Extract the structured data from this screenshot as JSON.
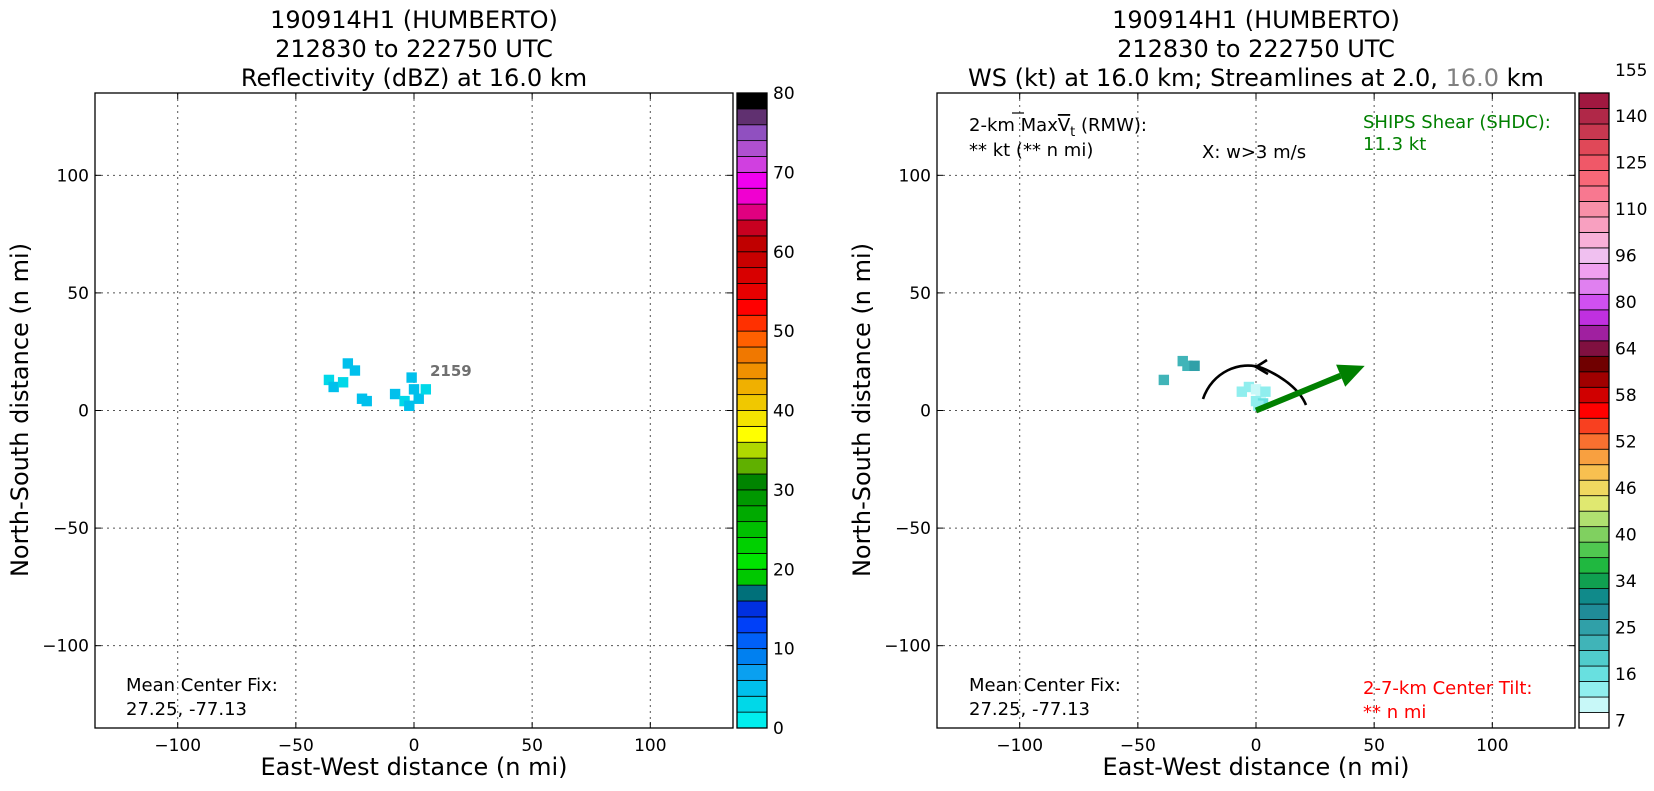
{
  "chart_data": [
    {
      "type": "heatmap",
      "title_lines": [
        "190914H1 (HUMBERTO)",
        "212830 to 222750 UTC",
        "Reflectivity (dBZ) at 16.0 km"
      ],
      "xlabel": "East-West distance (n mi)",
      "ylabel": "North-South distance (n mi)",
      "xlim": [
        -135,
        135
      ],
      "ylim": [
        -135,
        135
      ],
      "xticks": [
        -100,
        -50,
        0,
        50,
        100
      ],
      "yticks": [
        -100,
        -50,
        0,
        50,
        100
      ],
      "grid": true,
      "annotations": {
        "center_fix_label": "Mean Center Fix:",
        "center_fix_value": "27.25, -77.13",
        "point_label": "2159"
      },
      "echo_cells": [
        {
          "x": -28,
          "y": 20,
          "value": 5
        },
        {
          "x": -25,
          "y": 17,
          "value": 5
        },
        {
          "x": -36,
          "y": 13,
          "value": 4
        },
        {
          "x": -34,
          "y": 10,
          "value": 5
        },
        {
          "x": -30,
          "y": 12,
          "value": 4
        },
        {
          "x": -22,
          "y": 5,
          "value": 6
        },
        {
          "x": -20,
          "y": 4,
          "value": 5
        },
        {
          "x": -8,
          "y": 7,
          "value": 5
        },
        {
          "x": -4,
          "y": 4,
          "value": 4
        },
        {
          "x": -1,
          "y": 14,
          "value": 5
        },
        {
          "x": 0,
          "y": 9,
          "value": 6
        },
        {
          "x": 2,
          "y": 5,
          "value": 5
        },
        {
          "x": 5,
          "y": 9,
          "value": 4
        },
        {
          "x": -2,
          "y": 2,
          "value": 5
        }
      ],
      "colorbar": {
        "min": 0,
        "max": 80,
        "step": 2.5,
        "ticks": [
          "0",
          "10",
          "20",
          "30",
          "40",
          "50",
          "60",
          "70",
          "80"
        ],
        "colors": [
          "#00eeee",
          "#00d8e8",
          "#00c0ec",
          "#0aa0f0",
          "#0080f0",
          "#0060f8",
          "#0040f8",
          "#0030e0",
          "#00707a",
          "#00c800",
          "#00e400",
          "#00d000",
          "#00c000",
          "#00aa00",
          "#009800",
          "#008400",
          "#60b000",
          "#b0d800",
          "#ffff00",
          "#f4e400",
          "#f0c800",
          "#f0b000",
          "#f09000",
          "#f07800",
          "#ff6000",
          "#ff3000",
          "#ff0000",
          "#e80000",
          "#d80000",
          "#c80000",
          "#c00000",
          "#c80020",
          "#e00080",
          "#f000d0",
          "#f000f0",
          "#d040e0",
          "#b050d0",
          "#9050c0",
          "#603070",
          "#000000"
        ]
      }
    },
    {
      "type": "heatmap",
      "title_lines": [
        "190914H1 (HUMBERTO)",
        "212830 to 222750 UTC"
      ],
      "title_line3": {
        "part1": "WS (kt) at 16.0 km; Streamlines at 2.0,",
        "part2": "16.0",
        "part3": "km",
        "part2_color": "#808080"
      },
      "xlabel": "East-West distance (n mi)",
      "ylabel": "North-South distance (n mi)",
      "xlim": [
        -135,
        135
      ],
      "ylim": [
        -135,
        135
      ],
      "xticks": [
        -100,
        -50,
        0,
        50,
        100
      ],
      "yticks": [
        -100,
        -50,
        0,
        50,
        100
      ],
      "grid": true,
      "annotations": {
        "maxvt_prefix": "2-km Max",
        "maxvt_symbol": "V",
        "maxvt_sub": "t",
        "maxvt_suffix": " (RMW):",
        "maxvt_value": "** kt (** n mi)",
        "w_marker": "X: w>3 m/s",
        "ships_label": "SHIPS Shear (SHDC):",
        "ships_value": "11.3 kt",
        "ships_color": "#008000",
        "tilt_label": "2-7-km Center Tilt:",
        "tilt_value": "** n mi",
        "tilt_color": "#ff0000",
        "center_fix_label": "Mean Center Fix:",
        "center_fix_value": "27.25, -77.13"
      },
      "shear_vector": {
        "x0": 0,
        "y0": 0,
        "x1": 46,
        "y1": 19,
        "color": "#008000"
      },
      "ws_cells": [
        {
          "x": -31,
          "y": 21,
          "value": 24
        },
        {
          "x": -29,
          "y": 19,
          "value": 24
        },
        {
          "x": -26,
          "y": 19,
          "value": 26
        },
        {
          "x": -39,
          "y": 13,
          "value": 24
        },
        {
          "x": -6,
          "y": 8,
          "value": 14
        },
        {
          "x": -3,
          "y": 10,
          "value": 14
        },
        {
          "x": 0,
          "y": 9,
          "value": 12
        },
        {
          "x": 2,
          "y": 6,
          "value": 12
        },
        {
          "x": 4,
          "y": 8,
          "value": 14
        },
        {
          "x": 0,
          "y": 4,
          "value": 14
        },
        {
          "x": 3,
          "y": 3,
          "value": 16
        },
        {
          "x": 1,
          "y": 2,
          "value": 14
        }
      ],
      "colorbar": {
        "ticks": [
          "7",
          "16",
          "25",
          "34",
          "40",
          "46",
          "52",
          "58",
          "64",
          "80",
          "96",
          "110",
          "125",
          "140",
          "155"
        ],
        "colors": [
          "#ffffff",
          "#c8f8f8",
          "#90eeee",
          "#68e0e0",
          "#50cccc",
          "#40b4b8",
          "#30a0a8",
          "#208c98",
          "#108a8a",
          "#10a050",
          "#20b840",
          "#50c850",
          "#80d060",
          "#b0e070",
          "#e0e870",
          "#f0d860",
          "#f8c050",
          "#f8a040",
          "#f87030",
          "#f84020",
          "#ff0000",
          "#d00000",
          "#a00000",
          "#700000",
          "#801040",
          "#a020a0",
          "#c030e0",
          "#d050f0",
          "#e080f0",
          "#f0a0f0",
          "#f0c0f0",
          "#f8b0d8",
          "#f8a0c0",
          "#f890a8",
          "#f87890",
          "#f86878",
          "#f05868",
          "#e04858",
          "#c83850",
          "#b02848",
          "#a01840"
        ]
      }
    }
  ]
}
